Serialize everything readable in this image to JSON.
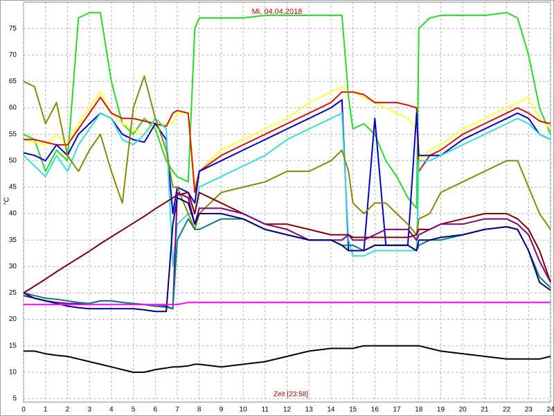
{
  "chart_data": {
    "type": "line",
    "title": "Mi, 04.04.2018",
    "x_label": "Zeit [23:58]",
    "y_label": "°C",
    "x": [
      0,
      0.5,
      1,
      1.5,
      2,
      2.5,
      3,
      3.5,
      4,
      4.5,
      5,
      5.5,
      6,
      6.5,
      6.8,
      7,
      7.5,
      7.8,
      8,
      9,
      10,
      11,
      12,
      13,
      14,
      14.5,
      14.8,
      15,
      15.5,
      16,
      16.5,
      17,
      17.5,
      17.9,
      18,
      18.5,
      19,
      20,
      21,
      22,
      22.5,
      23,
      23.5,
      24
    ],
    "xlim": [
      0,
      24
    ],
    "xticks": [
      0,
      1,
      2,
      3,
      4,
      5,
      6,
      7,
      8,
      9,
      10,
      11,
      12,
      13,
      14,
      15,
      16,
      17,
      18,
      19,
      20,
      21,
      22,
      23,
      24
    ],
    "ylim": [
      5,
      80
    ],
    "yticks": [
      5,
      10,
      15,
      20,
      25,
      30,
      35,
      40,
      45,
      50,
      55,
      60,
      65,
      70,
      75
    ],
    "grid": true,
    "series": [
      {
        "color": "#22dd22",
        "values": [
          55,
          54,
          48,
          52,
          50,
          77,
          78,
          78,
          65,
          57,
          55,
          58,
          56,
          50,
          48,
          47,
          46,
          75,
          77,
          77,
          77,
          77.5,
          77.5,
          77.5,
          77.5,
          77.5,
          62,
          56,
          57,
          55,
          50,
          47,
          43,
          41,
          75,
          77,
          77.5,
          77.5,
          77.5,
          78,
          77,
          70,
          60,
          55
        ]
      },
      {
        "color": "#ffff33",
        "values": [
          54,
          53.5,
          53,
          55,
          53,
          57,
          60,
          63,
          59,
          57,
          56,
          55,
          57,
          57,
          57,
          59,
          59,
          45,
          48,
          52,
          54,
          56,
          58,
          61,
          63,
          64,
          63,
          63,
          62,
          61,
          60,
          59,
          58,
          56,
          50,
          52,
          53,
          56,
          58,
          60,
          61,
          62,
          58,
          56
        ]
      },
      {
        "color": "#dd1100",
        "values": [
          54,
          54,
          53.5,
          53,
          53,
          56,
          59,
          62,
          59,
          58,
          58,
          57.5,
          57,
          56.5,
          59,
          59.5,
          59,
          44,
          48,
          51,
          53,
          55,
          57,
          59,
          61,
          63,
          63,
          63,
          62.5,
          61,
          61,
          61,
          60.5,
          60,
          48,
          51,
          52,
          55,
          57,
          59,
          60,
          59,
          57.5,
          57
        ]
      },
      {
        "color": "#0000cc",
        "values": [
          51.5,
          51,
          50,
          53,
          51,
          55,
          57,
          59,
          58,
          55,
          54,
          53.5,
          57,
          54,
          40,
          45,
          44,
          42,
          48,
          50,
          52,
          54,
          56,
          58,
          60,
          61.5,
          33,
          33,
          33,
          58,
          34,
          34,
          34,
          59,
          51,
          51,
          51,
          54,
          56,
          58,
          59,
          58,
          55,
          54
        ]
      },
      {
        "color": "#33dddd",
        "values": [
          51,
          49,
          47,
          51,
          48,
          53,
          56,
          59,
          58,
          54,
          53,
          55,
          58,
          56,
          30,
          38,
          40,
          40,
          45,
          47,
          49,
          51,
          54,
          56,
          58,
          59,
          35,
          32,
          32,
          33,
          33,
          33,
          33,
          33,
          50,
          50,
          51,
          53,
          55,
          57,
          58,
          57,
          55,
          54
        ]
      },
      {
        "color": "#888800",
        "values": [
          65,
          64,
          57,
          61,
          51,
          48,
          52,
          55,
          48,
          42,
          60,
          66,
          58,
          52,
          45,
          45,
          40,
          37,
          40,
          44,
          45,
          46,
          48,
          48,
          50,
          52,
          48,
          42,
          40,
          42,
          42,
          40,
          38,
          36,
          39,
          40,
          44,
          46,
          48,
          50,
          50,
          45,
          40,
          37
        ]
      },
      {
        "color": "#800000",
        "values": [
          25,
          26.3,
          27.6,
          29,
          30.3,
          31.6,
          32.9,
          34.3,
          35.6,
          36.9,
          38.2,
          39.5,
          40.9,
          42.2,
          43,
          43.5,
          44,
          40,
          44,
          42,
          40,
          38,
          38,
          37,
          36,
          36,
          36,
          35.5,
          35.5,
          35.5,
          35.5,
          35.5,
          35.5,
          36,
          37,
          37,
          38,
          39,
          40,
          40,
          39,
          37,
          33,
          27
        ]
      },
      {
        "color": "#800080",
        "values": [
          24.5,
          24,
          23.5,
          23.2,
          23,
          23,
          23,
          23.5,
          23.5,
          23.2,
          23,
          22.8,
          22.5,
          22.5,
          22,
          44,
          43,
          38,
          41,
          41,
          40,
          38,
          37,
          35,
          35,
          35,
          36,
          35,
          35,
          36,
          37,
          37,
          37,
          35,
          36,
          37,
          38,
          38,
          39,
          39,
          38,
          36,
          31,
          27
        ]
      },
      {
        "color": "#008080",
        "values": [
          25,
          24.5,
          24,
          23.8,
          23.5,
          23.2,
          23,
          23.5,
          23.5,
          23.2,
          23,
          22.8,
          22.5,
          22.3,
          22,
          35,
          39,
          37,
          37,
          39,
          39,
          37,
          36,
          35,
          35,
          34,
          34,
          34,
          33,
          34,
          34,
          34,
          34,
          33,
          34,
          35,
          35,
          36,
          37,
          37.5,
          37,
          33,
          28,
          26
        ]
      },
      {
        "color": "#000080",
        "values": [
          25,
          24,
          23.5,
          23,
          22.5,
          22.2,
          22,
          22,
          22,
          22,
          22,
          21.8,
          21.5,
          21.5,
          38,
          43,
          42,
          38,
          40,
          40,
          39,
          37,
          36,
          35,
          35,
          34,
          33,
          33,
          33,
          34,
          34,
          34,
          34,
          33,
          35,
          35,
          35.5,
          36,
          37,
          37.5,
          37,
          33,
          27,
          25.5
        ]
      },
      {
        "color": "#ff00ff",
        "values": [
          22.8,
          22.8,
          22.8,
          22.8,
          22.8,
          22.8,
          22.8,
          22.8,
          22.8,
          22.8,
          22.8,
          22.8,
          22.8,
          22.8,
          22.8,
          22.8,
          23.2,
          23.2,
          23.2,
          23.2,
          23.2,
          23.2,
          23.2,
          23.2,
          23.2,
          23.2,
          23.2,
          23.2,
          23.2,
          23.2,
          23.2,
          23.2,
          23.2,
          23.2,
          23.2,
          23.2,
          23.2,
          23.2,
          23.2,
          23.2,
          23.2,
          23.2,
          23.2,
          23.2
        ]
      },
      {
        "color": "#000000",
        "values": [
          14,
          14,
          13.5,
          13.2,
          13,
          12.5,
          12,
          11.5,
          11,
          10.5,
          10,
          10,
          10.5,
          10.8,
          11,
          11,
          11.2,
          11.5,
          11.5,
          11,
          11.5,
          12,
          13,
          14,
          14.5,
          14.5,
          14.5,
          14.5,
          15,
          15,
          15,
          15,
          15,
          15,
          15,
          14.5,
          14,
          13.5,
          13,
          12.5,
          12.5,
          12.5,
          12.5,
          13
        ]
      }
    ]
  }
}
